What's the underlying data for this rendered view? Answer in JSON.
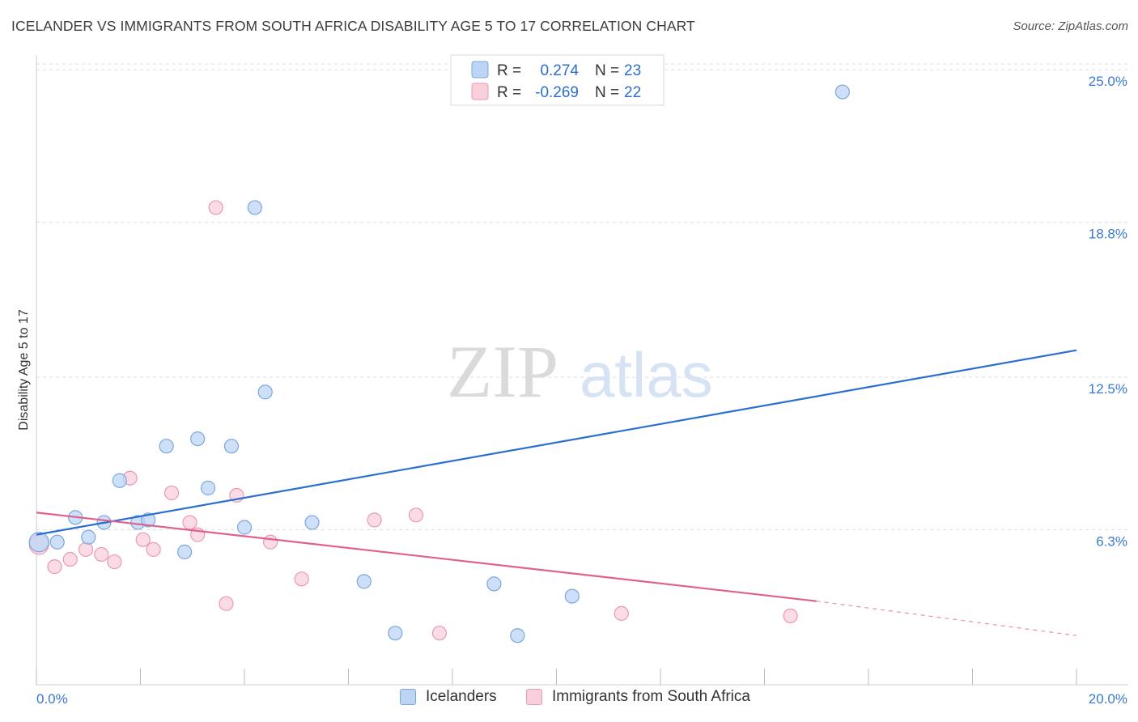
{
  "title": "ICELANDER VS IMMIGRANTS FROM SOUTH AFRICA DISABILITY AGE 5 TO 17 CORRELATION CHART",
  "source": "Source: ZipAtlas.com",
  "watermark": {
    "zip": "ZIP",
    "atlas": "atlas"
  },
  "legend": {
    "r_label": "R =",
    "n_label": "N =",
    "rows": [
      {
        "r": "0.274",
        "n": "23"
      },
      {
        "r": "-0.269",
        "n": "22"
      }
    ]
  },
  "colors": {
    "blue_fill": "#bcd5f5",
    "blue_stroke": "#7aa7e0",
    "blue_line": "#2a6fd0",
    "pink_fill": "#f9cfdc",
    "pink_stroke": "#e89ab2",
    "pink_line": "#e0608e",
    "tick_text": "#3a78d4",
    "grid": "#dddddd"
  },
  "chart_data": {
    "type": "scatter",
    "title": "ICELANDER VS IMMIGRANTS FROM SOUTH AFRICA DISABILITY AGE 5 TO 17 CORRELATION CHART",
    "xlabel": "",
    "ylabel": "Disability Age 5 to 17",
    "xlim": [
      0,
      20
    ],
    "ylim": [
      0,
      25.6
    ],
    "x_tick_labels": [
      "0.0%",
      "20.0%"
    ],
    "y_ticks": [
      6.3,
      12.5,
      18.8,
      25.0
    ],
    "y_tick_labels": [
      "6.3%",
      "12.5%",
      "18.8%",
      "25.0%"
    ],
    "grid": true,
    "legend_position": "top-center",
    "series": [
      {
        "name": "Icelanders",
        "color": "#7aa7e0",
        "points": [
          [
            0.05,
            5.8
          ],
          [
            0.4,
            5.8
          ],
          [
            0.75,
            6.8
          ],
          [
            1.0,
            6.0
          ],
          [
            1.3,
            6.6
          ],
          [
            1.6,
            8.3
          ],
          [
            1.95,
            6.6
          ],
          [
            2.15,
            6.7
          ],
          [
            2.5,
            9.7
          ],
          [
            2.85,
            5.4
          ],
          [
            3.1,
            10.0
          ],
          [
            3.3,
            8.0
          ],
          [
            3.75,
            9.7
          ],
          [
            4.0,
            6.4
          ],
          [
            4.2,
            19.4
          ],
          [
            4.4,
            11.9
          ],
          [
            5.3,
            6.6
          ],
          [
            6.3,
            4.2
          ],
          [
            6.9,
            2.1
          ],
          [
            8.8,
            4.1
          ],
          [
            9.25,
            2.0
          ],
          [
            10.3,
            3.6
          ],
          [
            15.5,
            24.1
          ]
        ],
        "trend": {
          "x": [
            0,
            20
          ],
          "y": [
            6.1,
            13.6
          ]
        }
      },
      {
        "name": "Immigrants from South Africa",
        "color": "#e89ab2",
        "points": [
          [
            0.05,
            5.7
          ],
          [
            0.35,
            4.8
          ],
          [
            0.65,
            5.1
          ],
          [
            0.95,
            5.5
          ],
          [
            1.25,
            5.3
          ],
          [
            1.5,
            5.0
          ],
          [
            1.8,
            8.4
          ],
          [
            2.05,
            5.9
          ],
          [
            2.25,
            5.5
          ],
          [
            2.6,
            7.8
          ],
          [
            2.95,
            6.6
          ],
          [
            3.1,
            6.1
          ],
          [
            3.65,
            3.3
          ],
          [
            3.85,
            7.7
          ],
          [
            3.45,
            19.4
          ],
          [
            4.5,
            5.8
          ],
          [
            5.1,
            4.3
          ],
          [
            6.5,
            6.7
          ],
          [
            7.3,
            6.9
          ],
          [
            7.75,
            2.1
          ],
          [
            11.25,
            2.9
          ],
          [
            14.5,
            2.8
          ]
        ],
        "trend": {
          "x": [
            0,
            15
          ],
          "y": [
            7.0,
            3.4
          ]
        },
        "trend_extension": {
          "x": [
            15,
            20
          ],
          "y": [
            3.4,
            2.0
          ]
        }
      }
    ]
  }
}
